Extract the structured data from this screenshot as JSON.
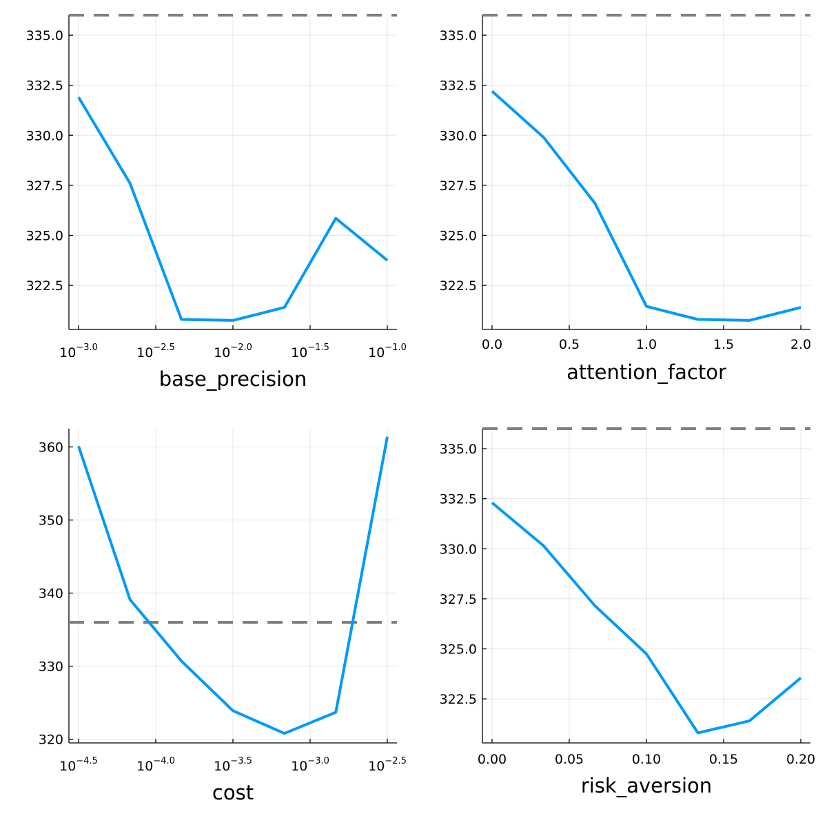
{
  "colors": {
    "series": "#009af9",
    "reference": "#808080"
  },
  "chart_data": [
    {
      "type": "line",
      "xscale": "log10",
      "xlabel": "base_precision",
      "ylabel": "",
      "xlim": [
        0.00097,
        0.1
      ],
      "ylim": [
        320.3,
        336.0
      ],
      "x_ticks": [
        {
          "base": "10",
          "exp": "−3.0",
          "value": 0.001
        },
        {
          "base": "10",
          "exp": "−2.5",
          "value": 0.0031623
        },
        {
          "base": "10",
          "exp": "−2.0",
          "value": 0.01
        },
        {
          "base": "10",
          "exp": "−1.5",
          "value": 0.031623
        },
        {
          "base": "10",
          "exp": "−1.0",
          "value": 0.1
        }
      ],
      "y_ticks": [
        {
          "label": "322.5",
          "value": 322.5
        },
        {
          "label": "325.0",
          "value": 325.0
        },
        {
          "label": "327.5",
          "value": 327.5
        },
        {
          "label": "330.0",
          "value": 330.0
        },
        {
          "label": "335.0",
          "value": 335.0
        }
      ],
      "y_grid": [
        322.5,
        325.0,
        327.5,
        330.0,
        332.5,
        335.0
      ],
      "y_tick_labels_extra": [
        {
          "label": "332.5",
          "value": 332.5
        }
      ],
      "grid": true,
      "series": [
        {
          "x": [
            0.001,
            0.0021544,
            0.0046416,
            0.01,
            0.021544,
            0.046416,
            0.1
          ],
          "y": [
            331.9,
            327.6,
            320.8,
            320.75,
            321.4,
            325.85,
            323.75
          ]
        }
      ],
      "reference_line": 336.0
    },
    {
      "type": "line",
      "xscale": "linear",
      "xlabel": "attention_factor",
      "ylabel": "",
      "xlim": [
        -0.06,
        2.06
      ],
      "ylim": [
        320.3,
        336.0
      ],
      "x_ticks": [
        {
          "label": "0.0",
          "value": 0.0
        },
        {
          "label": "0.5",
          "value": 0.5
        },
        {
          "label": "1.0",
          "value": 1.0
        },
        {
          "label": "1.5",
          "value": 1.5
        },
        {
          "label": "2.0",
          "value": 2.0
        }
      ],
      "y_ticks": [
        {
          "label": "322.5",
          "value": 322.5
        },
        {
          "label": "325.0",
          "value": 325.0
        },
        {
          "label": "327.5",
          "value": 327.5
        },
        {
          "label": "330.0",
          "value": 330.0
        },
        {
          "label": "332.5",
          "value": 332.5
        },
        {
          "label": "335.0",
          "value": 335.0
        }
      ],
      "grid": true,
      "series": [
        {
          "x": [
            0.0,
            0.3333,
            0.6667,
            1.0,
            1.3333,
            1.6667,
            2.0
          ],
          "y": [
            332.2,
            329.9,
            326.6,
            321.45,
            320.8,
            320.75,
            321.4
          ]
        }
      ],
      "reference_line": 336.0
    },
    {
      "type": "line",
      "xscale": "log10",
      "xlabel": "cost",
      "ylabel": "",
      "xlim": [
        3.02e-05,
        0.00331
      ],
      "ylim": [
        319.5,
        362.5
      ],
      "x_ticks": [
        {
          "base": "10",
          "exp": "−4.5",
          "value": 3.1623e-05
        },
        {
          "base": "10",
          "exp": "−4.0",
          "value": 0.0001
        },
        {
          "base": "10",
          "exp": "−3.5",
          "value": 0.00031623
        },
        {
          "base": "10",
          "exp": "−3.0",
          "value": 0.001
        },
        {
          "base": "10",
          "exp": "−2.5",
          "value": 0.0031623
        }
      ],
      "y_ticks": [
        {
          "label": "320",
          "value": 320
        },
        {
          "label": "330",
          "value": 330
        },
        {
          "label": "340",
          "value": 340
        },
        {
          "label": "350",
          "value": 350
        },
        {
          "label": "360",
          "value": 360
        }
      ],
      "grid": true,
      "series": [
        {
          "x": [
            3.1623e-05,
            6.8129e-05,
            0.00014678,
            0.00031623,
            0.00068129,
            0.0014678,
            0.0031623
          ],
          "y": [
            360.1,
            339.1,
            330.7,
            323.9,
            320.8,
            323.7,
            361.4
          ]
        }
      ],
      "reference_line": 336.0
    },
    {
      "type": "line",
      "xscale": "linear",
      "xlabel": "risk_aversion",
      "ylabel": "",
      "xlim": [
        -0.006,
        0.206
      ],
      "ylim": [
        320.3,
        336.0
      ],
      "x_ticks": [
        {
          "label": "0.00",
          "value": 0.0
        },
        {
          "label": "0.05",
          "value": 0.05
        },
        {
          "label": "0.10",
          "value": 0.1
        },
        {
          "label": "0.15",
          "value": 0.15
        },
        {
          "label": "0.20",
          "value": 0.2
        }
      ],
      "y_ticks": [
        {
          "label": "322.5",
          "value": 322.5
        },
        {
          "label": "325.0",
          "value": 325.0
        },
        {
          "label": "327.5",
          "value": 327.5
        },
        {
          "label": "330.0",
          "value": 330.0
        },
        {
          "label": "332.5",
          "value": 332.5
        },
        {
          "label": "335.0",
          "value": 335.0
        }
      ],
      "grid": true,
      "series": [
        {
          "x": [
            0.0,
            0.03333,
            0.06667,
            0.1,
            0.13333,
            0.16667,
            0.2
          ],
          "y": [
            332.3,
            330.15,
            327.15,
            324.75,
            320.8,
            321.4,
            323.55
          ]
        }
      ],
      "reference_line": 336.0
    }
  ]
}
